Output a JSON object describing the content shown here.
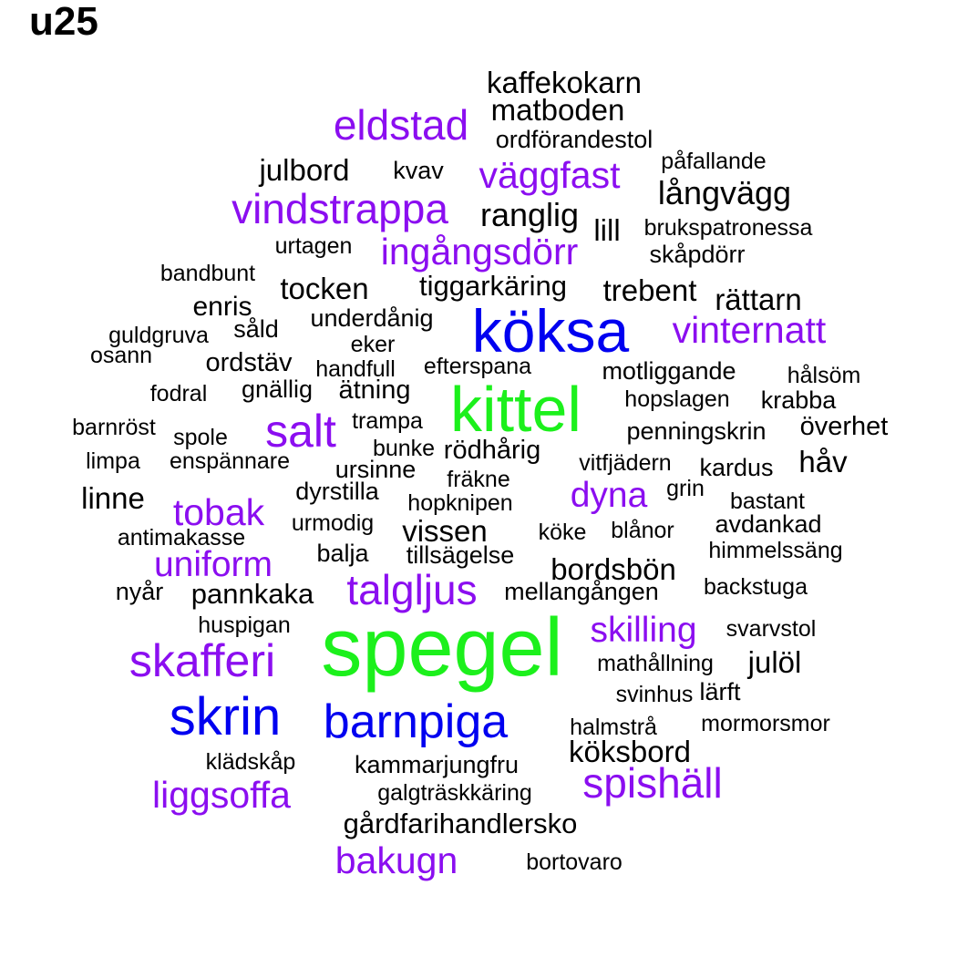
{
  "chart_data": {
    "type": "wordcloud",
    "title": "u25",
    "colors": {
      "black": "#000000",
      "purple": "#8b0ef0",
      "blue": "#0000f0",
      "green": "#1cf01c"
    },
    "words": [
      {
        "text": "kaffekokarn",
        "color": "black"
      },
      {
        "text": "matboden",
        "color": "black"
      },
      {
        "text": "eldstad",
        "color": "purple"
      },
      {
        "text": "ordförandestol",
        "color": "black"
      },
      {
        "text": "påfallande",
        "color": "black"
      },
      {
        "text": "julbord",
        "color": "black"
      },
      {
        "text": "kvav",
        "color": "black"
      },
      {
        "text": "väggfast",
        "color": "purple"
      },
      {
        "text": "långvägg",
        "color": "black"
      },
      {
        "text": "vindstrappa",
        "color": "purple"
      },
      {
        "text": "ranglig",
        "color": "black"
      },
      {
        "text": "lill",
        "color": "black"
      },
      {
        "text": "brukspatronessa",
        "color": "black"
      },
      {
        "text": "urtagen",
        "color": "black"
      },
      {
        "text": "ingångsdörr",
        "color": "purple"
      },
      {
        "text": "skåpdörr",
        "color": "black"
      },
      {
        "text": "bandbunt",
        "color": "black"
      },
      {
        "text": "tocken",
        "color": "black"
      },
      {
        "text": "tiggarkäring",
        "color": "black"
      },
      {
        "text": "trebent",
        "color": "black"
      },
      {
        "text": "rättarn",
        "color": "black"
      },
      {
        "text": "enris",
        "color": "black"
      },
      {
        "text": "underdånig",
        "color": "black"
      },
      {
        "text": "köksa",
        "color": "blue"
      },
      {
        "text": "vinternatt",
        "color": "purple"
      },
      {
        "text": "guldgruva",
        "color": "black"
      },
      {
        "text": "såld",
        "color": "black"
      },
      {
        "text": "eker",
        "color": "black"
      },
      {
        "text": "osann",
        "color": "black"
      },
      {
        "text": "ordstäv",
        "color": "black"
      },
      {
        "text": "handfull",
        "color": "black"
      },
      {
        "text": "efterspana",
        "color": "black"
      },
      {
        "text": "motliggande",
        "color": "black"
      },
      {
        "text": "hålsöm",
        "color": "black"
      },
      {
        "text": "fodral",
        "color": "black"
      },
      {
        "text": "gnällig",
        "color": "black"
      },
      {
        "text": "ätning",
        "color": "black"
      },
      {
        "text": "kittel",
        "color": "green"
      },
      {
        "text": "hopslagen",
        "color": "black"
      },
      {
        "text": "krabba",
        "color": "black"
      },
      {
        "text": "barnröst",
        "color": "black"
      },
      {
        "text": "spole",
        "color": "black"
      },
      {
        "text": "salt",
        "color": "purple"
      },
      {
        "text": "trampa",
        "color": "black"
      },
      {
        "text": "penningskrin",
        "color": "black"
      },
      {
        "text": "överhet",
        "color": "black"
      },
      {
        "text": "bunke",
        "color": "black"
      },
      {
        "text": "rödhårig",
        "color": "black"
      },
      {
        "text": "limpa",
        "color": "black"
      },
      {
        "text": "enspännare",
        "color": "black"
      },
      {
        "text": "vitfjädern",
        "color": "black"
      },
      {
        "text": "håv",
        "color": "black"
      },
      {
        "text": "ursinne",
        "color": "black"
      },
      {
        "text": "kardus",
        "color": "black"
      },
      {
        "text": "fräkne",
        "color": "black"
      },
      {
        "text": "linne",
        "color": "black"
      },
      {
        "text": "dyrstilla",
        "color": "black"
      },
      {
        "text": "dyna",
        "color": "purple"
      },
      {
        "text": "grin",
        "color": "black"
      },
      {
        "text": "hopknipen",
        "color": "black"
      },
      {
        "text": "bastant",
        "color": "black"
      },
      {
        "text": "tobak",
        "color": "purple"
      },
      {
        "text": "urmodig",
        "color": "black"
      },
      {
        "text": "avdankad",
        "color": "black"
      },
      {
        "text": "vissen",
        "color": "black"
      },
      {
        "text": "köke",
        "color": "black"
      },
      {
        "text": "blånor",
        "color": "black"
      },
      {
        "text": "antimakasse",
        "color": "black"
      },
      {
        "text": "himmelssäng",
        "color": "black"
      },
      {
        "text": "balja",
        "color": "black"
      },
      {
        "text": "tillsägelse",
        "color": "black"
      },
      {
        "text": "uniform",
        "color": "purple"
      },
      {
        "text": "bordsbön",
        "color": "black"
      },
      {
        "text": "talgljus",
        "color": "purple"
      },
      {
        "text": "nyår",
        "color": "black"
      },
      {
        "text": "pannkaka",
        "color": "black"
      },
      {
        "text": "mellangången",
        "color": "black"
      },
      {
        "text": "backstuga",
        "color": "black"
      },
      {
        "text": "huspigan",
        "color": "black"
      },
      {
        "text": "skilling",
        "color": "purple"
      },
      {
        "text": "svarvstol",
        "color": "black"
      },
      {
        "text": "spegel",
        "color": "green"
      },
      {
        "text": "skafferi",
        "color": "purple"
      },
      {
        "text": "mathållning",
        "color": "black"
      },
      {
        "text": "julöl",
        "color": "black"
      },
      {
        "text": "svinhus",
        "color": "black"
      },
      {
        "text": "lärft",
        "color": "black"
      },
      {
        "text": "skrin",
        "color": "blue"
      },
      {
        "text": "barnpiga",
        "color": "blue"
      },
      {
        "text": "halmstrå",
        "color": "black"
      },
      {
        "text": "mormorsmor",
        "color": "black"
      },
      {
        "text": "köksbord",
        "color": "black"
      },
      {
        "text": "klädskåp",
        "color": "black"
      },
      {
        "text": "kammarjungfru",
        "color": "black"
      },
      {
        "text": "spishäll",
        "color": "purple"
      },
      {
        "text": "liggsoffa",
        "color": "purple"
      },
      {
        "text": "galgträskkäring",
        "color": "black"
      },
      {
        "text": "gårdfarihandlersko",
        "color": "black"
      },
      {
        "text": "bakugn",
        "color": "purple"
      },
      {
        "text": "bortovaro",
        "color": "black"
      }
    ]
  }
}
